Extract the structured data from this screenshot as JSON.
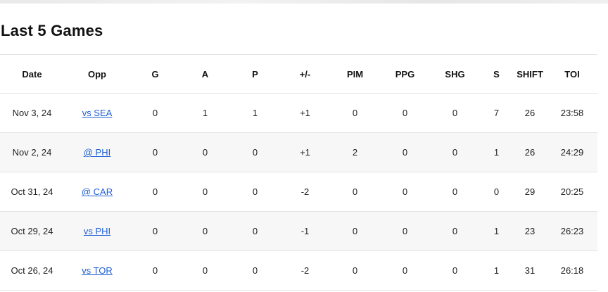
{
  "title": "Last 5 Games",
  "columns": [
    "Date",
    "Opp",
    "G",
    "A",
    "P",
    "+/-",
    "PIM",
    "PPG",
    "SHG",
    "S",
    "SHIFT",
    "TOI"
  ],
  "rows": [
    {
      "date": "Nov 3, 24",
      "opp": "vs SEA",
      "g": "0",
      "a": "1",
      "p": "1",
      "pm": "+1",
      "pim": "0",
      "ppg": "0",
      "shg": "0",
      "s": "7",
      "shift": "26",
      "toi": "23:58"
    },
    {
      "date": "Nov 2, 24",
      "opp": "@ PHI",
      "g": "0",
      "a": "0",
      "p": "0",
      "pm": "+1",
      "pim": "2",
      "ppg": "0",
      "shg": "0",
      "s": "1",
      "shift": "26",
      "toi": "24:29"
    },
    {
      "date": "Oct 31, 24",
      "opp": "@ CAR",
      "g": "0",
      "a": "0",
      "p": "0",
      "pm": "-2",
      "pim": "0",
      "ppg": "0",
      "shg": "0",
      "s": "0",
      "shift": "29",
      "toi": "20:25"
    },
    {
      "date": "Oct 29, 24",
      "opp": "vs PHI",
      "g": "0",
      "a": "0",
      "p": "0",
      "pm": "-1",
      "pim": "0",
      "ppg": "0",
      "shg": "0",
      "s": "1",
      "shift": "23",
      "toi": "26:23"
    },
    {
      "date": "Oct 26, 24",
      "opp": "vs TOR",
      "g": "0",
      "a": "0",
      "p": "0",
      "pm": "-2",
      "pim": "0",
      "ppg": "0",
      "shg": "0",
      "s": "1",
      "shift": "31",
      "toi": "26:18"
    }
  ],
  "colors": {
    "link": "#1f5fd6",
    "row_shade": "#f7f7f7",
    "divider": "#e3e3e3"
  }
}
